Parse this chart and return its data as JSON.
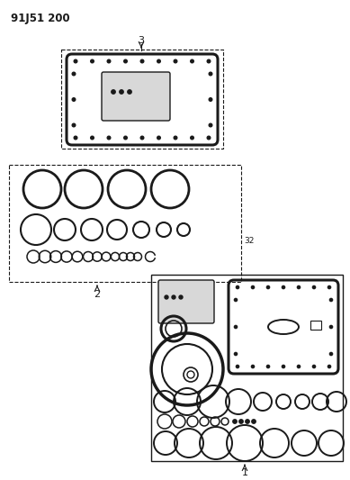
{
  "title": "91J51 200",
  "bg_color": "#ffffff",
  "line_color": "#1a1a1a",
  "label_3": "3",
  "label_2": "2",
  "label_1": "1",
  "label_32": "32"
}
